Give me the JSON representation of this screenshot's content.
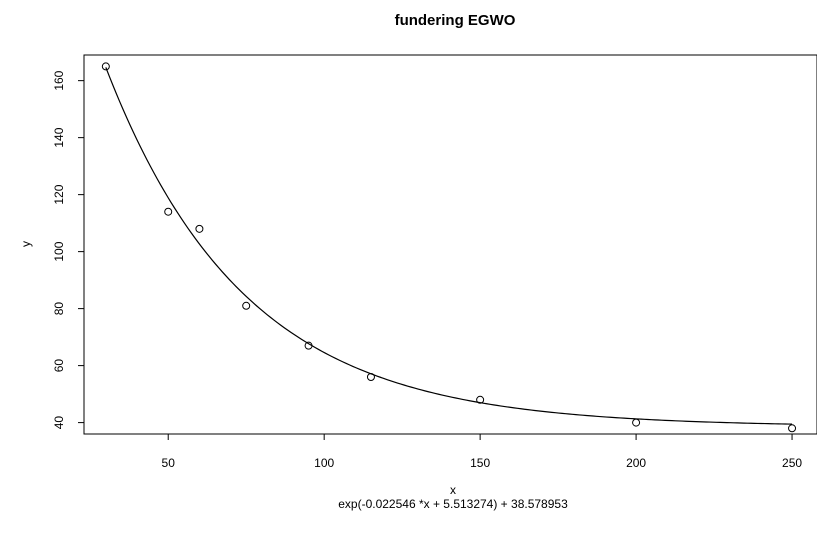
{
  "chart_data": {
    "type": "scatter",
    "title": "fundering EGWO",
    "xlabel": "x",
    "ylabel": "y",
    "subtitle": "exp(-0.022546 *x + 5.513274) + 38.578953",
    "xlim": [
      23,
      258
    ],
    "ylim": [
      36,
      169
    ],
    "xticks": [
      50,
      100,
      150,
      200,
      250
    ],
    "yticks": [
      40,
      60,
      80,
      100,
      120,
      140,
      160
    ],
    "grid": false,
    "points": {
      "x": [
        30,
        50,
        60,
        75,
        95,
        115,
        150,
        200,
        250
      ],
      "y": [
        165,
        114,
        108,
        81,
        67,
        56,
        48,
        40,
        38
      ]
    },
    "fit": {
      "a": -0.022546,
      "b": 5.513274,
      "c": 38.578953,
      "x_from": 30,
      "x_to": 250
    }
  }
}
